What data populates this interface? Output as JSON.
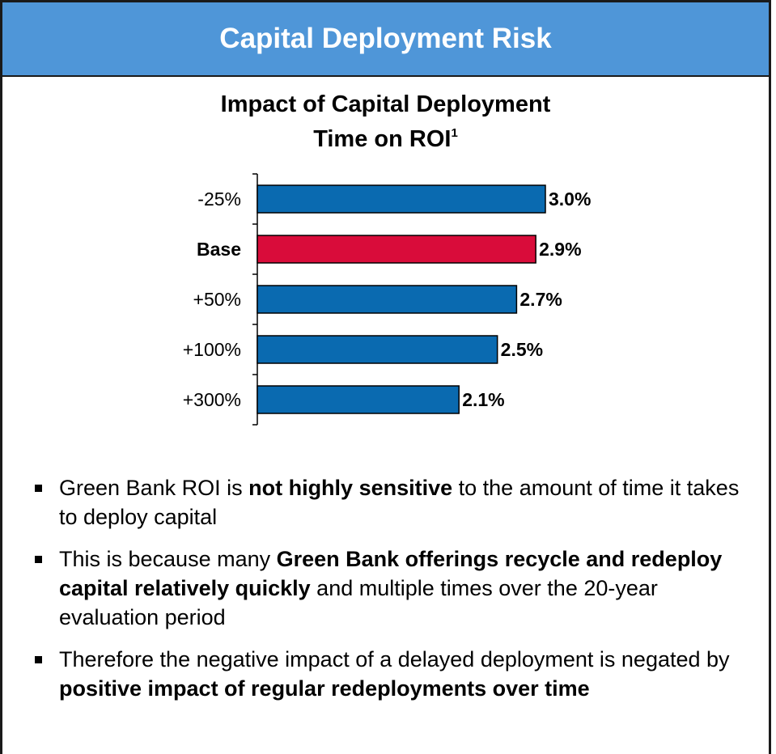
{
  "header": {
    "title": "Capital Deployment Risk"
  },
  "chart_data": {
    "type": "bar",
    "orientation": "horizontal",
    "title_line1": "Impact of Capital Deployment",
    "title_line2": "Time on ROI",
    "title_footnote": "1",
    "categories": [
      "-25%",
      "Base",
      "+50%",
      "+100%",
      "+300%"
    ],
    "values": [
      3.0,
      2.9,
      2.7,
      2.5,
      2.1
    ],
    "value_labels": [
      "3.0%",
      "2.9%",
      "2.7%",
      "2.5%",
      "2.1%"
    ],
    "highlight_category": "Base",
    "colors": {
      "default": "#0a6ab0",
      "highlight": "#d90c3a"
    },
    "xlim": [
      0,
      3.0
    ]
  },
  "bullets": [
    {
      "parts": [
        {
          "text": "Green Bank ROI is ",
          "bold": false
        },
        {
          "text": "not highly sensitive",
          "bold": true
        },
        {
          "text": " to the amount of time it takes to deploy capital",
          "bold": false
        }
      ]
    },
    {
      "parts": [
        {
          "text": "This is because many ",
          "bold": false
        },
        {
          "text": "Green Bank offerings recycle and redeploy capital relatively quickly",
          "bold": true
        },
        {
          "text": " and multiple times over the 20-year evaluation period",
          "bold": false
        }
      ]
    },
    {
      "parts": [
        {
          "text": "Therefore the negative impact of a delayed deployment is negated by ",
          "bold": false
        },
        {
          "text": "positive impact of regular redeployments over time",
          "bold": true
        }
      ]
    }
  ]
}
